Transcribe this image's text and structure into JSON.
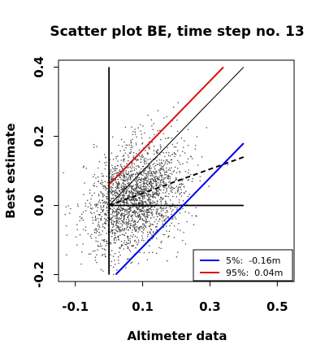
{
  "chart_data": {
    "type": "scatter",
    "title": "Scatter plot BE, time step no. 13",
    "xlabel": "Altimeter data",
    "ylabel": "Best estimate",
    "xlim": [
      -0.15,
      0.55
    ],
    "ylim": [
      -0.22,
      0.42
    ],
    "x_ticks": [
      "-0.1",
      "0.1",
      "0.3",
      "0.5"
    ],
    "x_tick_values": [
      -0.1,
      0.1,
      0.3,
      0.5
    ],
    "y_ticks": [
      "-0.2",
      "0.0",
      "0.2",
      "0.4"
    ],
    "y_tick_values": [
      -0.2,
      0.0,
      0.2,
      0.4
    ],
    "grid": false,
    "legend_position": "bottom-right",
    "points": {
      "color": "#444444",
      "count": 2200,
      "x_mean": 0.08,
      "x_sd": 0.07,
      "y_mean": 0.02,
      "y_sd": 0.075
    },
    "reference_lines": [
      {
        "kind": "vertical",
        "x": 0.0,
        "y_range": [
          -0.2,
          0.4
        ],
        "color": "#000000",
        "style": "solid"
      },
      {
        "kind": "horizontal",
        "y": 0.0,
        "x_range": [
          0.0,
          0.4
        ],
        "color": "#000000",
        "style": "solid"
      },
      {
        "kind": "identity",
        "x_range": [
          0.0,
          0.4
        ],
        "y_range": [
          0.0,
          0.4
        ],
        "color": "#000000",
        "style": "solid"
      },
      {
        "kind": "fit",
        "x_range": [
          0.0,
          0.4
        ],
        "y_range": [
          0.0,
          0.14
        ],
        "color": "#000000",
        "style": "dashed"
      }
    ],
    "series": [
      {
        "name": "5%:  -0.16m",
        "color": "#0000ee",
        "x": [
          0.02,
          0.4
        ],
        "y": [
          -0.2,
          0.18
        ]
      },
      {
        "name": "95%:  0.04m",
        "color": "#dd1111",
        "x": [
          0.0,
          0.34
        ],
        "y": [
          0.06,
          0.4
        ]
      }
    ]
  }
}
